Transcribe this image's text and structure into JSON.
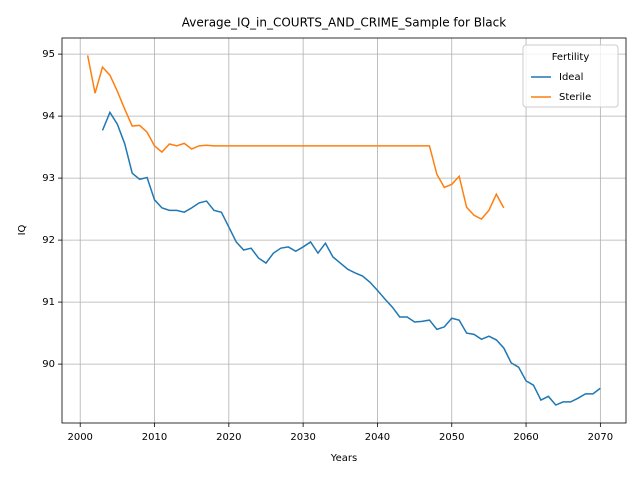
{
  "chart_data": {
    "type": "line",
    "title": "Average_IQ_in_COURTS_AND_CRIME_Sample for Black",
    "x_label": "Years",
    "y_label": "IQ",
    "x": [
      2001,
      2002,
      2003,
      2004,
      2005,
      2006,
      2007,
      2008,
      2009,
      2010,
      2011,
      2012,
      2013,
      2014,
      2015,
      2016,
      2017,
      2018,
      2019,
      2020,
      2021,
      2022,
      2023,
      2024,
      2025,
      2026,
      2027,
      2028,
      2029,
      2030,
      2031,
      2032,
      2033,
      2034,
      2035,
      2036,
      2037,
      2038,
      2039,
      2040,
      2041,
      2042,
      2043,
      2044,
      2045,
      2046,
      2047,
      2048,
      2049,
      2050,
      2051,
      2052,
      2053,
      2054,
      2055,
      2056,
      2057,
      2058,
      2059,
      2060,
      2061,
      2062,
      2063,
      2064,
      2065,
      2066,
      2067,
      2068,
      2069,
      2070
    ],
    "series": [
      {
        "name": "Ideal",
        "color": "#1f77b4",
        "values": [
          null,
          null,
          93.77,
          94.06,
          93.87,
          93.55,
          93.08,
          92.98,
          93.01,
          92.65,
          92.52,
          92.48,
          92.48,
          92.45,
          92.52,
          92.6,
          92.63,
          92.48,
          92.45,
          92.21,
          91.97,
          91.84,
          91.87,
          91.71,
          91.63,
          91.79,
          91.87,
          91.89,
          91.82,
          91.89,
          91.97,
          91.79,
          91.95,
          91.73,
          91.63,
          91.53,
          91.47,
          91.42,
          91.32,
          91.19,
          91.05,
          90.92,
          90.76,
          90.76,
          90.68,
          90.69,
          90.71,
          90.56,
          90.6,
          90.74,
          90.71,
          90.5,
          90.48,
          90.4,
          90.45,
          90.39,
          90.26,
          90.02,
          89.95,
          89.73,
          89.66,
          89.42,
          89.48,
          89.34,
          89.39,
          89.39,
          89.45,
          89.52,
          89.52,
          89.61
        ]
      },
      {
        "name": "Sterile",
        "color": "#ff7f0e",
        "values": [
          94.98,
          94.37,
          94.79,
          94.66,
          94.4,
          94.11,
          93.84,
          93.85,
          93.74,
          93.52,
          93.42,
          93.55,
          93.52,
          93.56,
          93.47,
          93.52,
          93.53,
          93.52,
          93.52,
          93.52,
          93.52,
          93.52,
          93.52,
          93.52,
          93.52,
          93.52,
          93.52,
          93.52,
          93.52,
          93.52,
          93.52,
          93.52,
          93.52,
          93.52,
          93.52,
          93.52,
          93.52,
          93.52,
          93.52,
          93.52,
          93.52,
          93.52,
          93.52,
          93.52,
          93.52,
          93.52,
          93.52,
          93.06,
          92.85,
          92.9,
          93.03,
          92.53,
          92.4,
          92.34,
          92.48,
          92.74,
          92.52,
          null,
          null,
          null,
          null,
          null,
          null,
          null,
          null,
          null,
          null,
          null,
          null,
          null
        ]
      }
    ],
    "xlim": [
      1997.55,
      2073.45
    ],
    "xticks": [
      2000,
      2010,
      2020,
      2030,
      2040,
      2050,
      2060,
      2070
    ],
    "ylim": [
      89.05,
      95.26
    ],
    "yticks": [
      90,
      91,
      92,
      93,
      94,
      95
    ],
    "grid": true,
    "legend_title": "Fertility",
    "legend_position": "upper right"
  }
}
